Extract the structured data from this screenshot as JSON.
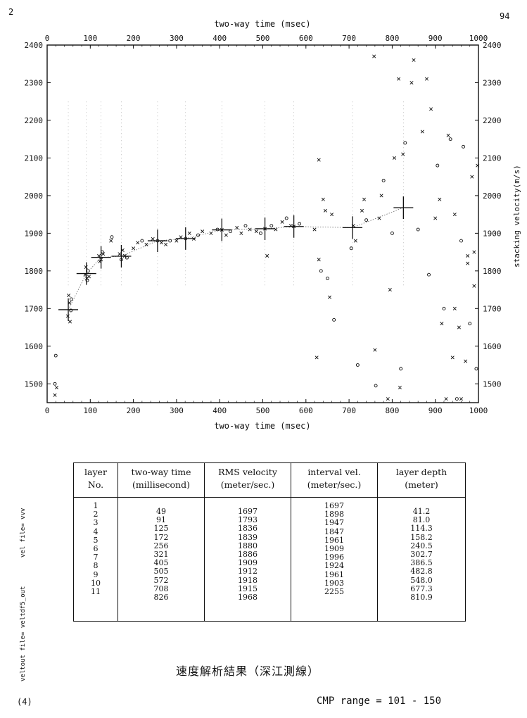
{
  "page": {
    "number_left": "2",
    "number_right": "94",
    "margin_mark": "(4)",
    "side_text_1": "vel file= vvv",
    "side_text_2": "veltout file= veltdf5_out",
    "caption": "速度解析結果（深江測線）",
    "cmp_range": "CMP range = 101 - 150"
  },
  "chart_data": {
    "type": "scatter",
    "x_label_top": "two-way time (msec)",
    "x_label_bottom": "two-way time (msec)",
    "y_label_right": "stacking velocity(m/s)",
    "xlim": [
      0,
      1000
    ],
    "ylim": [
      1450,
      2400
    ],
    "x_ticks": [
      "0",
      "100",
      "200",
      "300",
      "400",
      "500",
      "600",
      "700",
      "800",
      "900",
      "1000"
    ],
    "y_ticks": [
      "1500",
      "1600",
      "1700",
      "1800",
      "1900",
      "2000",
      "2100",
      "2200",
      "2300",
      "2400"
    ],
    "picked_velocity": {
      "time": [
        49,
        91,
        125,
        172,
        256,
        321,
        405,
        505,
        572,
        708,
        826
      ],
      "velocity": [
        1697,
        1793,
        1836,
        1839,
        1880,
        1886,
        1909,
        1912,
        1918,
        1915,
        1968
      ]
    },
    "semblance_points": [
      [
        18,
        1500
      ],
      [
        22,
        1490
      ],
      [
        18,
        1470
      ],
      [
        20,
        1575
      ],
      [
        50,
        1735
      ],
      [
        52,
        1715
      ],
      [
        55,
        1695
      ],
      [
        48,
        1680
      ],
      [
        53,
        1665
      ],
      [
        56,
        1725
      ],
      [
        88,
        1790
      ],
      [
        92,
        1780
      ],
      [
        95,
        1800
      ],
      [
        90,
        1810
      ],
      [
        97,
        1785
      ],
      [
        93,
        1775
      ],
      [
        120,
        1840
      ],
      [
        125,
        1830
      ],
      [
        128,
        1850
      ],
      [
        122,
        1825
      ],
      [
        130,
        1845
      ],
      [
        150,
        1890
      ],
      [
        148,
        1880
      ],
      [
        168,
        1845
      ],
      [
        172,
        1830
      ],
      [
        175,
        1855
      ],
      [
        180,
        1840
      ],
      [
        185,
        1835
      ],
      [
        200,
        1860
      ],
      [
        210,
        1875
      ],
      [
        220,
        1880
      ],
      [
        230,
        1870
      ],
      [
        245,
        1885
      ],
      [
        256,
        1880
      ],
      [
        265,
        1875
      ],
      [
        275,
        1870
      ],
      [
        285,
        1880
      ],
      [
        300,
        1880
      ],
      [
        310,
        1890
      ],
      [
        321,
        1886
      ],
      [
        330,
        1900
      ],
      [
        340,
        1885
      ],
      [
        350,
        1895
      ],
      [
        360,
        1905
      ],
      [
        380,
        1900
      ],
      [
        395,
        1910
      ],
      [
        405,
        1909
      ],
      [
        415,
        1895
      ],
      [
        425,
        1905
      ],
      [
        440,
        1915
      ],
      [
        450,
        1900
      ],
      [
        460,
        1920
      ],
      [
        470,
        1910
      ],
      [
        485,
        1905
      ],
      [
        495,
        1900
      ],
      [
        505,
        1912
      ],
      [
        510,
        1840
      ],
      [
        520,
        1920
      ],
      [
        530,
        1910
      ],
      [
        545,
        1930
      ],
      [
        555,
        1940
      ],
      [
        565,
        1920
      ],
      [
        572,
        1918
      ],
      [
        585,
        1925
      ],
      [
        620,
        1910
      ],
      [
        630,
        1830
      ],
      [
        635,
        1800
      ],
      [
        640,
        1990
      ],
      [
        645,
        1960
      ],
      [
        650,
        1780
      ],
      [
        655,
        1730
      ],
      [
        660,
        1950
      ],
      [
        665,
        1670
      ],
      [
        630,
        2095
      ],
      [
        625,
        1570
      ],
      [
        705,
        1860
      ],
      [
        710,
        1920
      ],
      [
        715,
        1880
      ],
      [
        720,
        1550
      ],
      [
        730,
        1960
      ],
      [
        735,
        1990
      ],
      [
        740,
        1935
      ],
      [
        758,
        2370
      ],
      [
        760,
        1590
      ],
      [
        762,
        1495
      ],
      [
        770,
        1940
      ],
      [
        775,
        2000
      ],
      [
        780,
        2040
      ],
      [
        790,
        1460
      ],
      [
        795,
        1750
      ],
      [
        800,
        1900
      ],
      [
        805,
        2100
      ],
      [
        815,
        2310
      ],
      [
        820,
        1540
      ],
      [
        818,
        1490
      ],
      [
        825,
        2110
      ],
      [
        830,
        2140
      ],
      [
        845,
        2300
      ],
      [
        850,
        2360
      ],
      [
        860,
        1910
      ],
      [
        870,
        2170
      ],
      [
        880,
        2310
      ],
      [
        885,
        1790
      ],
      [
        890,
        2230
      ],
      [
        900,
        1940
      ],
      [
        905,
        2080
      ],
      [
        910,
        1990
      ],
      [
        915,
        1660
      ],
      [
        920,
        1700
      ],
      [
        925,
        1460
      ],
      [
        930,
        2160
      ],
      [
        935,
        2150
      ],
      [
        940,
        1570
      ],
      [
        945,
        1700
      ],
      [
        950,
        1460
      ],
      [
        955,
        1650
      ],
      [
        960,
        1460
      ],
      [
        965,
        2130
      ],
      [
        970,
        1560
      ],
      [
        975,
        1820
      ],
      [
        980,
        1660
      ],
      [
        985,
        2050
      ],
      [
        990,
        1850
      ],
      [
        995,
        1540
      ],
      [
        998,
        2080
      ],
      [
        945,
        1950
      ],
      [
        960,
        1880
      ],
      [
        975,
        1840
      ],
      [
        990,
        1760
      ]
    ]
  },
  "table": {
    "headers": [
      {
        "line1": "layer",
        "line2": "No."
      },
      {
        "line1": "two-way time",
        "line2": "(millisecond)"
      },
      {
        "line1": "RMS velocity",
        "line2": "(meter/sec.)"
      },
      {
        "line1": "interval vel.",
        "line2": "(meter/sec.)"
      },
      {
        "line1": "layer depth",
        "line2": "(meter)"
      }
    ],
    "layer_no": [
      "1",
      "2",
      "3",
      "4",
      "5",
      "6",
      "7",
      "8",
      "9",
      "10",
      "11"
    ],
    "two_way_time": [
      "49",
      "91",
      "125",
      "172",
      "256",
      "321",
      "405",
      "505",
      "572",
      "708",
      "826"
    ],
    "rms_velocity": [
      "1697",
      "1793",
      "1836",
      "1839",
      "1880",
      "1886",
      "1909",
      "1912",
      "1918",
      "1915",
      "1968"
    ],
    "interval_vel": [
      "1697",
      "1898",
      "1947",
      "1847",
      "1961",
      "1909",
      "1996",
      "1924",
      "1961",
      "1903",
      "2255"
    ],
    "layer_depth": [
      "41.2",
      "81.0",
      "114.3",
      "158.2",
      "240.5",
      "302.7",
      "386.5",
      "482.8",
      "548.0",
      "677.3",
      "810.9"
    ]
  }
}
